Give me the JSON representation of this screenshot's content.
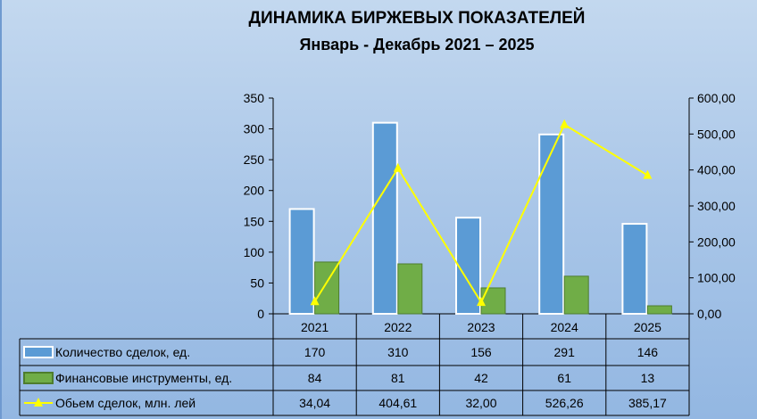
{
  "chart_data": {
    "type": "bar+line",
    "title": "ДИНАМИКА БИРЖЕВЫХ ПОКАЗАТЕЛЕЙ",
    "subtitle": "Январь  -  Декабрь 2021 – 2025",
    "categories": [
      "2021",
      "2022",
      "2023",
      "2024",
      "2025"
    ],
    "series": [
      {
        "name": "Количество сделок, ед.",
        "type": "bar",
        "axis": "left",
        "color": "#5b9bd5",
        "values": [
          170,
          310,
          156,
          291,
          146
        ],
        "labels": [
          "170",
          "310",
          "156",
          "291",
          "146"
        ]
      },
      {
        "name": "Финансовые инструменты, ед.",
        "type": "bar",
        "axis": "left",
        "color": "#70ad47",
        "values": [
          84,
          81,
          42,
          61,
          13
        ],
        "labels": [
          "84",
          "81",
          "42",
          "61",
          "13"
        ]
      },
      {
        "name": "Обьем сделок, млн. лей",
        "type": "line",
        "axis": "right",
        "color": "#ffff00",
        "values": [
          34.04,
          404.61,
          32.0,
          526.26,
          385.17
        ],
        "labels": [
          "34,04",
          "404,61",
          "32,00",
          "526,26",
          "385,17"
        ]
      }
    ],
    "left_axis": {
      "ylim": [
        0,
        350
      ],
      "ticks": [
        "0",
        "50",
        "100",
        "150",
        "200",
        "250",
        "300",
        "350"
      ]
    },
    "right_axis": {
      "ylim": [
        0,
        600
      ],
      "ticks": [
        "0,00",
        "100,00",
        "200,00",
        "300,00",
        "400,00",
        "500,00",
        "600,00"
      ]
    },
    "grid": false,
    "legend": "data-table"
  }
}
